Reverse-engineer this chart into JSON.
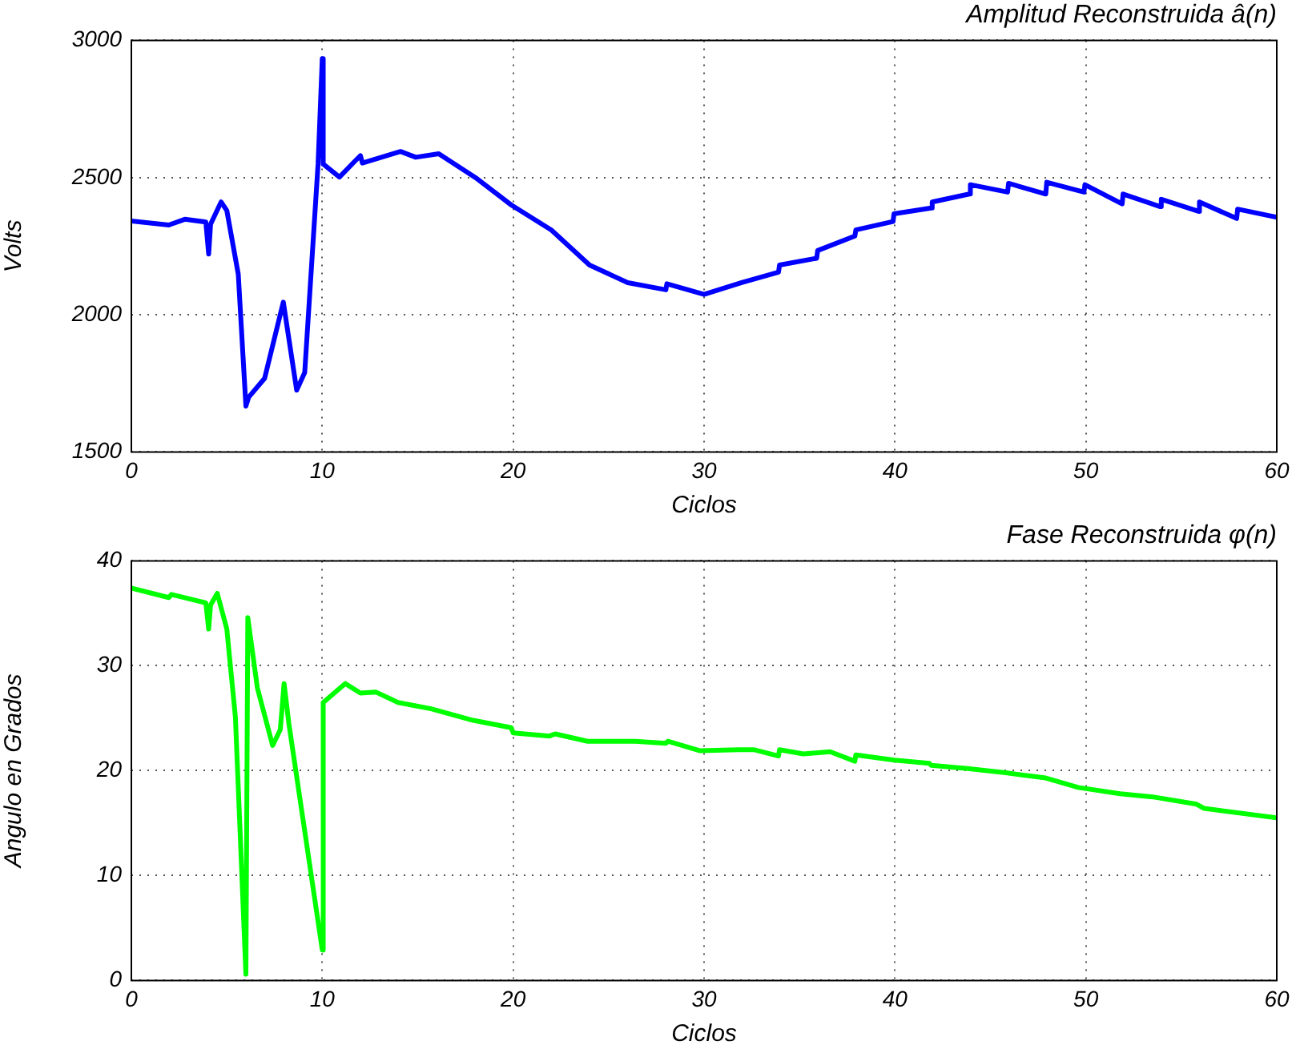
{
  "chart_data": [
    {
      "type": "line",
      "title": "Amplitud Reconstruida â(n)",
      "xlabel": "Ciclos",
      "ylabel": "Volts",
      "xlim": [
        0,
        60
      ],
      "xticks": [
        0,
        10,
        20,
        30,
        40,
        50,
        60
      ],
      "ylim": [
        1500,
        3000
      ],
      "yticks": [
        1500,
        2000,
        2500,
        3000
      ],
      "grid": true,
      "marker": "none",
      "line_style": "solid",
      "series": [
        {
          "color": "#0000ff",
          "x": [
            0,
            1.96,
            2.8,
            3.9,
            4.05,
            4.15,
            4.7,
            5.0,
            5.6,
            6.0,
            6.15,
            6.98,
            7.96,
            8.66,
            9.08,
            9.78,
            10.0,
            10.05,
            10.9,
            11.7,
            12.0,
            12.1,
            14.1,
            14.9,
            16.1,
            18.1,
            19.9,
            22.0,
            24.0,
            26.0,
            28.0,
            28.05,
            30.0,
            31.97,
            33.9,
            33.95,
            35.9,
            35.95,
            37.9,
            37.95,
            39.9,
            39.95,
            41.9,
            41.95,
            43.9,
            43.95,
            45.9,
            45.95,
            47.9,
            47.95,
            49.9,
            49.95,
            51.9,
            51.95,
            53.9,
            53.95,
            55.9,
            55.95,
            57.9,
            57.95,
            60
          ],
          "values": [
            2342,
            2327,
            2348,
            2338,
            2221,
            2330,
            2411,
            2380,
            2148,
            1667,
            1700,
            1768,
            2046,
            1725,
            1789,
            2549,
            2933,
            2549,
            2502,
            2559,
            2580,
            2553,
            2595,
            2574,
            2587,
            2496,
            2400,
            2309,
            2181,
            2117,
            2091,
            2113,
            2074,
            2117,
            2155,
            2181,
            2206,
            2234,
            2287,
            2309,
            2340,
            2368,
            2389,
            2411,
            2440,
            2474,
            2447,
            2479,
            2440,
            2483,
            2447,
            2474,
            2404,
            2440,
            2394,
            2421,
            2377,
            2411,
            2351,
            2385,
            2355
          ]
        }
      ]
    },
    {
      "type": "line",
      "title": "Fase Reconstruida φ(n)",
      "xlabel": "Ciclos",
      "ylabel": "Angulo en Grados",
      "xlim": [
        0,
        60
      ],
      "xticks": [
        0,
        10,
        20,
        30,
        40,
        50,
        60
      ],
      "ylim": [
        0,
        40
      ],
      "yticks": [
        0,
        10,
        20,
        30,
        40
      ],
      "grid": true,
      "marker": "none",
      "line_style": "solid",
      "series": [
        {
          "color": "#00ff00",
          "x": [
            0,
            1.96,
            2.1,
            3.9,
            4.05,
            4.15,
            4.5,
            5.0,
            5.45,
            6.0,
            6.1,
            6.6,
            7.4,
            7.8,
            8.0,
            8.25,
            10.0,
            10.05,
            11.2,
            12.0,
            12.8,
            13.97,
            15.7,
            17.9,
            19.9,
            20.0,
            21.9,
            22.2,
            23.9,
            26.4,
            28.0,
            28.1,
            29.8,
            31.8,
            32.6,
            33.9,
            33.95,
            35.2,
            36.6,
            37.9,
            37.95,
            39.97,
            41.8,
            41.9,
            43.8,
            45.8,
            47.9,
            49.6,
            51.8,
            53.5,
            55.8,
            56.2,
            60
          ],
          "values": [
            37.4,
            36.5,
            36.8,
            36.0,
            33.5,
            35.8,
            36.9,
            33.5,
            25.1,
            0.6,
            34.6,
            27.9,
            22.4,
            23.9,
            28.3,
            24.5,
            2.9,
            26.5,
            28.3,
            27.4,
            27.5,
            26.5,
            25.9,
            24.8,
            24.1,
            23.6,
            23.3,
            23.5,
            22.8,
            22.8,
            22.6,
            22.8,
            21.9,
            22.0,
            22.0,
            21.4,
            22.0,
            21.6,
            21.8,
            20.9,
            21.5,
            21.0,
            20.7,
            20.5,
            20.2,
            19.8,
            19.3,
            18.4,
            17.8,
            17.5,
            16.8,
            16.4,
            15.5
          ]
        }
      ]
    }
  ]
}
